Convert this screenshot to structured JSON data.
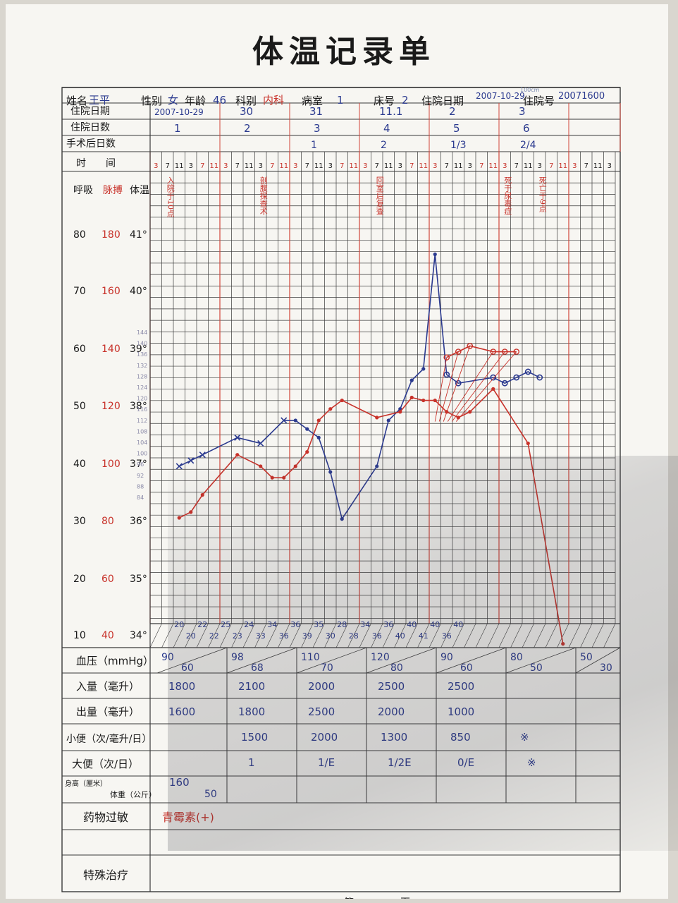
{
  "form": {
    "title": "体温记录单",
    "footer_left": "第",
    "footer_right": "页"
  },
  "patient": {
    "name_label": "姓名",
    "name": "王平",
    "sex_label": "性别",
    "sex": "女",
    "age_label": "年龄",
    "age": "46",
    "dept_label": "科别",
    "dept": "内科",
    "ward_label": "病室",
    "ward": "1",
    "bed_label": "床号",
    "bed": "2",
    "admit_date_label": "住院日期",
    "admit_date": "2007-10-29",
    "admit_no_label": "住院号",
    "admit_no": "20071600",
    "stamp_note": "100cm"
  },
  "header_rows": {
    "date_label": "住院日期",
    "days_label": "住院日数",
    "post_op_label": "手术后日数",
    "time_label": "时　　间",
    "dates": [
      "2007-10-29",
      "30",
      "31",
      "11.1",
      "2",
      "3",
      "",
      ""
    ],
    "days": [
      "1",
      "2",
      "3",
      "4",
      "5",
      "6",
      "",
      ""
    ],
    "post_op": [
      "",
      "",
      "1",
      "2",
      "1/3",
      "2/4",
      "",
      ""
    ],
    "times": [
      "3",
      "7",
      "11",
      "3",
      "7",
      "11"
    ]
  },
  "axis": {
    "resp_label": "呼吸",
    "pulse_label": "脉搏",
    "temp_label": "体温",
    "resp_ticks": [
      "80",
      "70",
      "60",
      "50",
      "40",
      "30",
      "20",
      "10"
    ],
    "pulse_ticks": [
      "180",
      "160",
      "140",
      "120",
      "100",
      "80",
      "60",
      "40"
    ],
    "temp_ticks": [
      "41°",
      "40°",
      "39°",
      "38°",
      "37°",
      "36°",
      "35°",
      "34°"
    ],
    "pulse_minor_ticks": [
      "144",
      "140",
      "136",
      "132",
      "128",
      "124",
      "120",
      "116",
      "112",
      "108",
      "104",
      "100",
      "96",
      "92",
      "88",
      "84"
    ]
  },
  "annotations": [
    {
      "text": "入院于10点",
      "slot": 1
    },
    {
      "text": "剖腹探查术",
      "slot": 9
    },
    {
      "text": "回室后复查",
      "slot": 19
    },
    {
      "text": "死于尿毒症",
      "slot": 30
    },
    {
      "text": "死亡于9点",
      "slot": 33
    }
  ],
  "vitals": {
    "temperature_c": [
      {
        "slot": 2,
        "value": 36.9
      },
      {
        "slot": 3,
        "value": 37.0
      },
      {
        "slot": 4,
        "value": 37.1
      },
      {
        "slot": 7,
        "value": 37.4
      },
      {
        "slot": 9,
        "value": 37.3
      },
      {
        "slot": 11,
        "value": 37.7
      },
      {
        "slot": 12,
        "value": 37.7
      },
      {
        "slot": 13,
        "value": 37.55
      },
      {
        "slot": 14,
        "value": 37.4
      },
      {
        "slot": 15,
        "value": 36.8
      },
      {
        "slot": 16,
        "value": 35.98
      },
      {
        "slot": 19,
        "value": 36.9
      },
      {
        "slot": 20,
        "value": 37.7
      },
      {
        "slot": 21,
        "value": 37.9
      },
      {
        "slot": 22,
        "value": 38.4
      },
      {
        "slot": 23,
        "value": 38.6
      },
      {
        "slot": 24,
        "value": 40.6
      },
      {
        "slot": 25,
        "value": 38.5
      },
      {
        "slot": 26,
        "value": 38.35
      },
      {
        "slot": 29,
        "value": 38.45
      },
      {
        "slot": 30,
        "value": 38.35
      },
      {
        "slot": 31,
        "value": 38.45
      },
      {
        "slot": 32,
        "value": 38.55
      },
      {
        "slot": 33,
        "value": 38.45
      }
    ],
    "pulse_bpm": [
      {
        "slot": 2,
        "value": 80
      },
      {
        "slot": 3,
        "value": 82
      },
      {
        "slot": 4,
        "value": 88
      },
      {
        "slot": 7,
        "value": 102
      },
      {
        "slot": 9,
        "value": 98
      },
      {
        "slot": 10,
        "value": 94
      },
      {
        "slot": 11,
        "value": 94
      },
      {
        "slot": 12,
        "value": 98
      },
      {
        "slot": 13,
        "value": 103
      },
      {
        "slot": 14,
        "value": 114
      },
      {
        "slot": 15,
        "value": 118
      },
      {
        "slot": 16,
        "value": 121
      },
      {
        "slot": 19,
        "value": 115
      },
      {
        "slot": 21,
        "value": 117
      },
      {
        "slot": 22,
        "value": 122
      },
      {
        "slot": 23,
        "value": 121
      },
      {
        "slot": 24,
        "value": 121
      },
      {
        "slot": 25,
        "value": 117
      },
      {
        "slot": 26,
        "value": 115
      },
      {
        "slot": 27,
        "value": 117
      },
      {
        "slot": 29,
        "value": 125
      },
      {
        "slot": 32,
        "value": 106
      },
      {
        "slot": 35,
        "value": 36
      }
    ],
    "pulse_peaks": [
      {
        "slot": 25,
        "value": 136
      },
      {
        "slot": 26,
        "value": 138
      },
      {
        "slot": 27,
        "value": 140
      },
      {
        "slot": 29,
        "value": 138
      },
      {
        "slot": 30,
        "value": 138
      },
      {
        "slot": 31,
        "value": 138
      }
    ],
    "respiration": [
      "20",
      "20",
      "22",
      "22",
      "25",
      "23",
      "24",
      "33",
      "34",
      "36",
      "36",
      "39",
      "35",
      "30",
      "28",
      "28",
      "34",
      "36",
      "36",
      "40",
      "40",
      "41",
      "40",
      "36",
      "40"
    ]
  },
  "rows": {
    "bp_label": "血压（mmHg）",
    "intake_label": "入量（毫升）",
    "output_label": "出量（毫升）",
    "urine_label": "小便（次/毫升/日）",
    "stool_label": "大便（次/日）",
    "height_label": "身高（厘米）",
    "weight_label": "体重（公斤）",
    "allergy_label": "药物过敏",
    "treatment_label": "特殊治疗",
    "bp": [
      {
        "sys": "90",
        "dia": "60"
      },
      {
        "sys": "98",
        "dia": "68"
      },
      {
        "sys": "110",
        "dia": "70"
      },
      {
        "sys": "120",
        "dia": "80"
      },
      {
        "sys": "90",
        "dia": "60"
      },
      {
        "sys": "80",
        "dia": "50"
      },
      {
        "sys": "50",
        "dia": "30"
      }
    ],
    "intake": [
      "1800",
      "2100",
      "2000",
      "2500",
      "2500"
    ],
    "output": [
      "1600",
      "1800",
      "2500",
      "2000",
      "1000"
    ],
    "urine": [
      "",
      "1500",
      "2000",
      "1300",
      "850",
      "※"
    ],
    "stool": [
      "",
      "1",
      "1/E",
      "1/2E",
      "0/E",
      "※"
    ],
    "height": "160",
    "weight": "50",
    "allergy": "青霉素(+)"
  },
  "colors": {
    "blue_ink": "#2b3a8f",
    "red_ink": "#c8322a",
    "grid": "#3a3a3a",
    "red_rule": "#d0453a"
  }
}
